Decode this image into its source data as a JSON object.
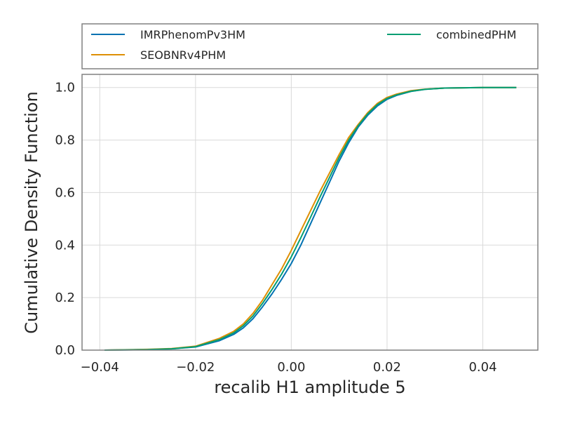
{
  "chart_data": {
    "type": "line",
    "xlabel": "recalib H1 amplitude 5",
    "ylabel": "Cumulative Density Function",
    "xlim": [
      -0.0437,
      0.0515
    ],
    "ylim": [
      0.0,
      1.05
    ],
    "xticks": [
      -0.04,
      -0.02,
      0.0,
      0.02,
      0.04
    ],
    "xtick_labels": [
      "−0.04",
      "−0.02",
      "0.00",
      "0.02",
      "0.04"
    ],
    "yticks": [
      0.0,
      0.2,
      0.4,
      0.6,
      0.8,
      1.0
    ],
    "ytick_labels": [
      "0.0",
      "0.2",
      "0.4",
      "0.6",
      "0.8",
      "1.0"
    ],
    "grid": true,
    "legend_position": "top (above plot, 2 columns)",
    "series": [
      {
        "name": "IMRPhenomPv3HM",
        "color": "#0072b2",
        "x": [
          -0.039,
          -0.03,
          -0.025,
          -0.02,
          -0.015,
          -0.012,
          -0.01,
          -0.008,
          -0.006,
          -0.004,
          -0.002,
          0.0,
          0.002,
          0.004,
          0.006,
          0.008,
          0.01,
          0.012,
          0.014,
          0.016,
          0.018,
          0.02,
          0.022,
          0.025,
          0.028,
          0.032,
          0.04,
          0.047
        ],
        "y": [
          0.0,
          0.002,
          0.005,
          0.012,
          0.036,
          0.06,
          0.085,
          0.12,
          0.165,
          0.215,
          0.27,
          0.33,
          0.4,
          0.48,
          0.56,
          0.64,
          0.72,
          0.79,
          0.85,
          0.895,
          0.93,
          0.955,
          0.97,
          0.985,
          0.993,
          0.998,
          1.0,
          1.0
        ]
      },
      {
        "name": "SEOBNRv4PHM",
        "color": "#de8f05",
        "x": [
          -0.039,
          -0.03,
          -0.025,
          -0.02,
          -0.015,
          -0.012,
          -0.01,
          -0.008,
          -0.006,
          -0.004,
          -0.002,
          0.0,
          0.002,
          0.004,
          0.006,
          0.008,
          0.01,
          0.012,
          0.014,
          0.016,
          0.018,
          0.02,
          0.022,
          0.025,
          0.028,
          0.032,
          0.04,
          0.047
        ],
        "y": [
          0.0,
          0.003,
          0.006,
          0.015,
          0.045,
          0.072,
          0.1,
          0.14,
          0.19,
          0.25,
          0.31,
          0.38,
          0.455,
          0.53,
          0.605,
          0.675,
          0.745,
          0.81,
          0.86,
          0.905,
          0.94,
          0.962,
          0.975,
          0.988,
          0.994,
          0.998,
          1.0,
          1.0
        ]
      },
      {
        "name": "combinedPHM",
        "color": "#029e73",
        "x": [
          -0.039,
          -0.03,
          -0.025,
          -0.02,
          -0.015,
          -0.012,
          -0.01,
          -0.008,
          -0.006,
          -0.004,
          -0.002,
          0.0,
          0.002,
          0.004,
          0.006,
          0.008,
          0.01,
          0.012,
          0.014,
          0.016,
          0.018,
          0.02,
          0.022,
          0.025,
          0.028,
          0.032,
          0.04,
          0.047
        ],
        "y": [
          0.0,
          0.002,
          0.005,
          0.013,
          0.04,
          0.066,
          0.093,
          0.13,
          0.178,
          0.232,
          0.29,
          0.355,
          0.428,
          0.505,
          0.583,
          0.658,
          0.733,
          0.8,
          0.855,
          0.9,
          0.935,
          0.958,
          0.972,
          0.986,
          0.993,
          0.998,
          1.0,
          1.0
        ]
      }
    ]
  }
}
